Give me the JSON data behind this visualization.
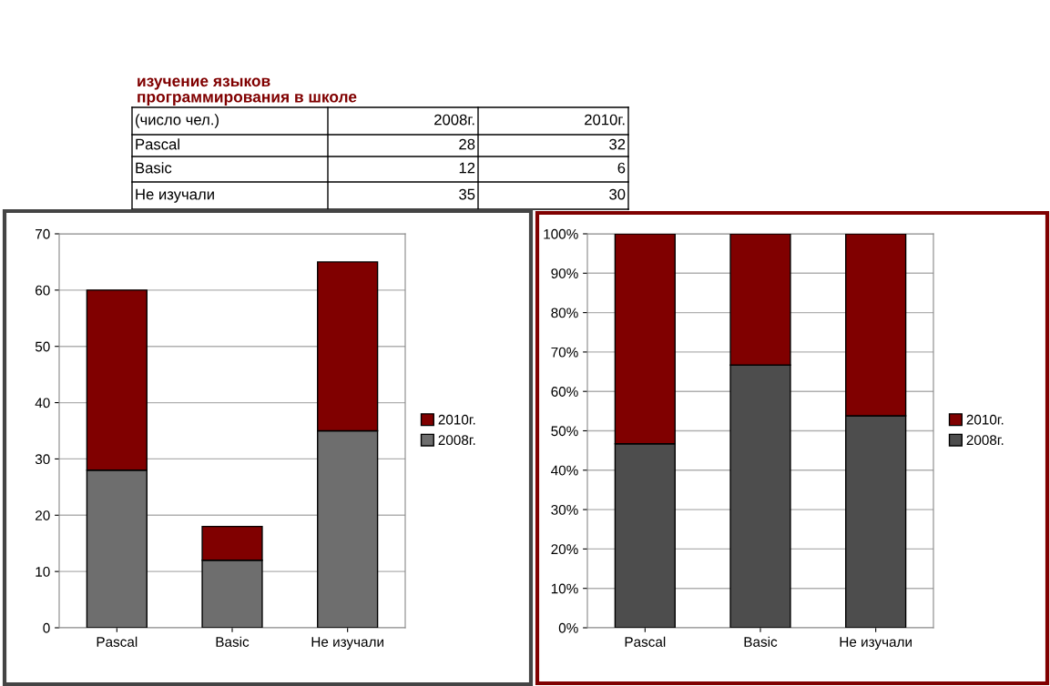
{
  "chart_data": [
    {
      "type": "other",
      "title": "изучение языков\nпрограммирования в школе",
      "annotations": [
        "(число чел.)"
      ],
      "categories": [
        "Pascal",
        "Basic",
        "Не изучали"
      ],
      "data_labels": true,
      "series": [
        {
          "name": "2008г.",
          "values": [
            28,
            12,
            35
          ]
        },
        {
          "name": "2010г.",
          "values": [
            32,
            6,
            30
          ]
        }
      ]
    },
    {
      "type": "bar",
      "categories": [
        "Pascal",
        "Basic",
        "Не изучали"
      ],
      "stacked": true,
      "series": [
        {
          "name": "2008г.",
          "color": "#6e6e6e",
          "values": [
            28,
            12,
            35
          ]
        },
        {
          "name": "2010г.",
          "color": "#800000",
          "values": [
            32,
            6,
            30
          ]
        }
      ],
      "ylim": [
        0,
        70
      ],
      "yticks": [
        0,
        10,
        20,
        30,
        40,
        50,
        60,
        70
      ],
      "grid": "y",
      "legend": "right"
    },
    {
      "type": "bar",
      "categories": [
        "Pascal",
        "Basic",
        "Не изучали"
      ],
      "stacked": true,
      "series": [
        {
          "name": "2008г.",
          "color": "#4d4d4d",
          "values": [
            46.7,
            66.7,
            53.8
          ]
        },
        {
          "name": "2010г.",
          "color": "#800000",
          "values": [
            53.3,
            33.3,
            46.2
          ]
        }
      ],
      "ylim": [
        0,
        100
      ],
      "yticks": [
        {
          "value": 0,
          "label": "0%"
        },
        {
          "value": 10,
          "label": "10%"
        },
        {
          "value": 20,
          "label": "20%"
        },
        {
          "value": 30,
          "label": "30%"
        },
        {
          "value": 40,
          "label": "40%"
        },
        {
          "value": 50,
          "label": "50%"
        },
        {
          "value": 60,
          "label": "60%"
        },
        {
          "value": 70,
          "label": "70%"
        },
        {
          "value": 80,
          "label": "80%"
        },
        {
          "value": 90,
          "label": "90%"
        },
        {
          "value": 100,
          "label": "100%"
        }
      ],
      "grid": "y",
      "legend": "right"
    }
  ]
}
